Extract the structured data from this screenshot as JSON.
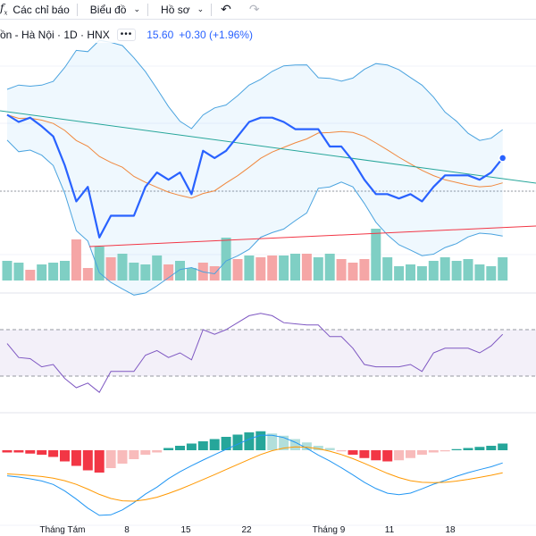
{
  "toolbar": {
    "indicators_label": "Các chỉ báo",
    "chart_label": "Biểu đồ",
    "profile_label": "Hồ sơ",
    "fx_icon": "function-icon",
    "undo_icon": "undo-icon",
    "redo_icon": "redo-icon"
  },
  "legend": {
    "symbol": "ồn - Hà Nội · 1D · HNX",
    "last_price": "15.60",
    "change": "+0.30 (+1.96%)"
  },
  "colors": {
    "price_line": "#2962ff",
    "bollinger": "#4aa3df",
    "sma": "#f0883e",
    "trend_down": "#26a69a",
    "trend_up": "#f23645",
    "vol_up": "#7fcfc4",
    "vol_down": "#f5a6a6",
    "rsi": "#7e57c2",
    "macd_line": "#2196f3",
    "signal_line": "#ff9800",
    "hist_pos_strong": "#26a69a",
    "hist_pos_weak": "#b2dfdb",
    "hist_neg_strong": "#f23645",
    "hist_neg_weak": "#f8bbbb"
  },
  "x_axis": {
    "labels": [
      "Tháng Tám",
      "8",
      "15",
      "22",
      "Tháng 9",
      "11",
      "18"
    ]
  },
  "chart_data": [
    {
      "type": "line",
      "name": "price-pane",
      "close": [
        15.6,
        15.55,
        15.58,
        15.52,
        15.45,
        15.25,
        15.0,
        15.1,
        14.75,
        14.9,
        14.9,
        14.9,
        15.1,
        15.2,
        15.15,
        15.2,
        15.05,
        15.35,
        15.3,
        15.35,
        15.45,
        15.55,
        15.58,
        15.58,
        15.55,
        15.5,
        15.5,
        15.5,
        15.38,
        15.38,
        15.28,
        15.15,
        15.05,
        15.05,
        15.02,
        15.05,
        15.0,
        15.1,
        15.18,
        15.18,
        15.18,
        15.15,
        15.2,
        15.3
      ]
    },
    {
      "type": "bar",
      "name": "volume",
      "up_down": [
        1,
        1,
        0,
        1,
        1,
        1,
        0,
        0,
        1,
        0,
        1,
        1,
        1,
        1,
        0,
        1,
        1,
        0,
        0,
        1,
        0,
        1,
        0,
        0,
        1,
        1,
        0,
        1,
        1,
        0,
        0,
        0,
        1,
        1,
        1,
        1,
        1,
        1,
        1,
        1,
        1,
        1,
        1,
        1
      ]
    },
    {
      "type": "line",
      "name": "rsi",
      "values": [
        58,
        46,
        45,
        38,
        40,
        28,
        20,
        24,
        16,
        34,
        34,
        34,
        48,
        52,
        46,
        50,
        44,
        70,
        66,
        70,
        76,
        82,
        84,
        82,
        76,
        75,
        74,
        74,
        64,
        64,
        54,
        40,
        38,
        38,
        38,
        40,
        34,
        50,
        54,
        54,
        54,
        50,
        56,
        66
      ]
    },
    {
      "type": "bar",
      "name": "macd-histogram",
      "values": [
        -0.01,
        -0.01,
        -0.015,
        -0.02,
        -0.03,
        -0.05,
        -0.07,
        -0.09,
        -0.1,
        -0.08,
        -0.06,
        -0.04,
        -0.02,
        -0.01,
        0.01,
        0.02,
        0.03,
        0.04,
        0.05,
        0.06,
        0.07,
        0.08,
        0.085,
        0.075,
        0.065,
        0.05,
        0.035,
        0.02,
        0.01,
        -0.005,
        -0.02,
        -0.035,
        -0.045,
        -0.05,
        -0.045,
        -0.035,
        -0.02,
        -0.01,
        -0.005,
        0.005,
        0.01,
        0.015,
        0.02,
        0.03
      ]
    }
  ]
}
